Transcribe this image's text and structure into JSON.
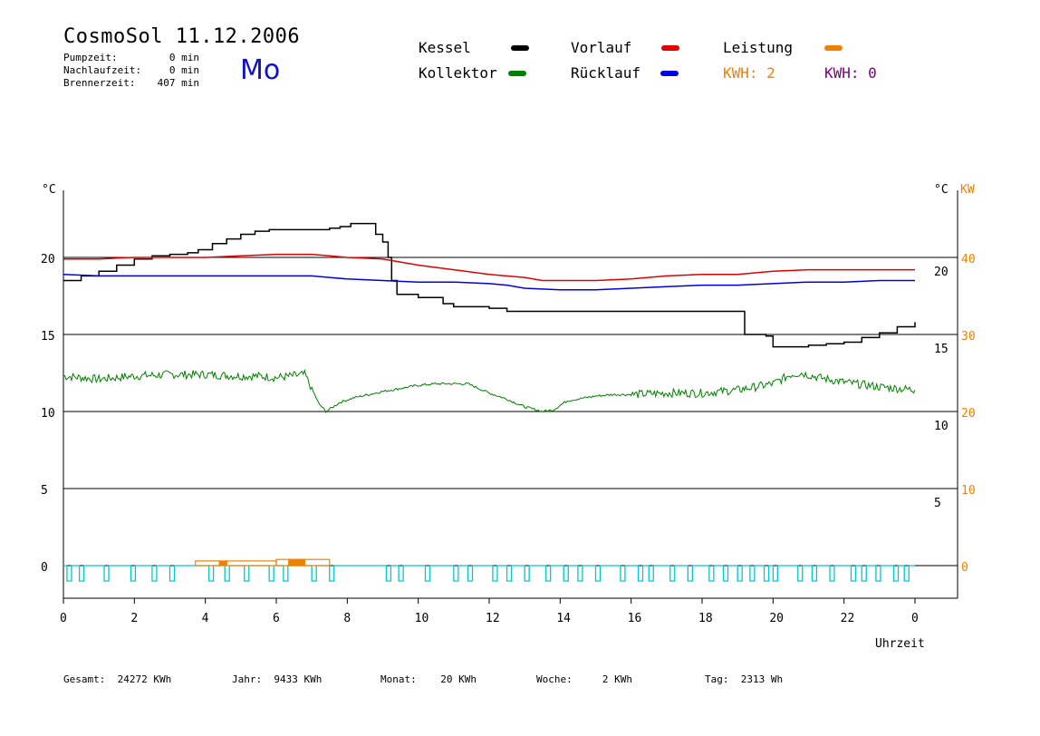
{
  "header": {
    "title": "CosmoSol 11.12.2006",
    "day": "Mo",
    "stats": [
      {
        "label": "Pumpzeit:",
        "value": "0 min"
      },
      {
        "label": "Nachlaufzeit:",
        "value": "0 min"
      },
      {
        "label": "Brennerzeit:",
        "value": "407 min"
      }
    ]
  },
  "legend": {
    "kessel": {
      "label": "Kessel",
      "color": "#000000"
    },
    "vorlauf": {
      "label": "Vorlauf",
      "color": "#e00000"
    },
    "leistung": {
      "label": "Leistung",
      "color": "#f08000"
    },
    "kollektor": {
      "label": "Kollektor",
      "color": "#008000"
    },
    "ruecklauf": {
      "label": "Rücklauf",
      "color": "#0000e0"
    },
    "kwh_a": {
      "label": "KWH: 2",
      "color": "#f08000"
    },
    "kwh_b": {
      "label": "KWH: 0",
      "color": "#800080"
    }
  },
  "footer": {
    "gesamt": "Gesamt:  24272 KWh",
    "jahr": "Jahr:  9433 KWh",
    "monat": "Monat:    20 KWh",
    "woche": "Woche:     2 KWh",
    "tag": "Tag:  2313 Wh"
  },
  "chart_data": {
    "type": "line",
    "xlabel": "Uhrzeit",
    "xlim": [
      0,
      24
    ],
    "ylim": [
      -1.5,
      25
    ],
    "left_unit": "°C",
    "right_unit": "°C",
    "right_power_unit": "KW",
    "x_ticks": [
      "0",
      "2",
      "4",
      "6",
      "8",
      "10",
      "12",
      "14",
      "16",
      "18",
      "20",
      "22",
      "0"
    ],
    "left_ticks": [
      {
        "v": 0,
        "t": "0"
      },
      {
        "v": 5,
        "t": "5"
      },
      {
        "v": 10,
        "t": "10"
      },
      {
        "v": 15,
        "t": "15"
      },
      {
        "v": 20,
        "t": "20"
      }
    ],
    "right_temp_ticks": [
      {
        "v": 5,
        "t": "5"
      },
      {
        "v": 10,
        "t": "10"
      },
      {
        "v": 15,
        "t": "15"
      },
      {
        "v": 20,
        "t": "20"
      }
    ],
    "right_power_ticks": [
      {
        "v": 0,
        "t": "0"
      },
      {
        "v": 5,
        "t": "10"
      },
      {
        "v": 10,
        "t": "20"
      },
      {
        "v": 15,
        "t": "30"
      },
      {
        "v": 20,
        "t": "40"
      }
    ],
    "grid_lines": [
      0,
      5,
      10,
      15,
      20
    ],
    "series": [
      {
        "name": "Kessel",
        "color": "#000000",
        "step": true,
        "x": [
          0,
          0.5,
          1,
          1.5,
          2,
          2.5,
          3,
          3.5,
          3.8,
          4.2,
          4.6,
          5,
          5.4,
          5.8,
          6.5,
          7.2,
          7.5,
          7.8,
          8.1,
          8.6,
          8.8,
          9.0,
          9.15,
          9.25,
          9.4,
          10,
          10.7,
          11,
          12,
          12.5,
          13,
          14,
          15,
          16,
          17,
          18,
          19,
          19.2,
          19.8,
          20,
          20.5,
          21,
          21.5,
          22,
          22.5,
          23,
          23.5,
          24
        ],
        "y": [
          18.5,
          18.8,
          19.1,
          19.5,
          19.9,
          20.1,
          20.2,
          20.3,
          20.5,
          20.9,
          21.2,
          21.5,
          21.7,
          21.8,
          21.8,
          21.8,
          21.9,
          22.0,
          22.2,
          22.2,
          21.5,
          21.0,
          20.0,
          18.5,
          17.6,
          17.4,
          17.0,
          16.8,
          16.7,
          16.5,
          16.5,
          16.5,
          16.5,
          16.5,
          16.5,
          16.5,
          16.5,
          15.0,
          14.9,
          14.2,
          14.2,
          14.3,
          14.4,
          14.5,
          14.8,
          15.1,
          15.5,
          15.8
        ]
      },
      {
        "name": "Vorlauf",
        "color": "#e00000",
        "x": [
          0,
          1,
          2,
          3,
          4,
          5,
          6,
          6.5,
          7,
          7.5,
          8,
          9,
          9.5,
          10,
          11,
          12,
          13,
          13.5,
          14,
          15,
          16,
          17,
          18,
          19,
          20,
          21,
          22,
          23,
          24
        ],
        "y": [
          19.9,
          19.9,
          20.0,
          20.0,
          20.0,
          20.1,
          20.2,
          20.2,
          20.2,
          20.1,
          20.0,
          19.9,
          19.7,
          19.5,
          19.2,
          18.9,
          18.7,
          18.5,
          18.5,
          18.5,
          18.6,
          18.8,
          18.9,
          18.9,
          19.1,
          19.2,
          19.2,
          19.2,
          19.2
        ]
      },
      {
        "name": "Rücklauf",
        "color": "#0000e0",
        "x": [
          0,
          1,
          2,
          3,
          4,
          5,
          6,
          7,
          7.5,
          8,
          9,
          10,
          11,
          12,
          12.5,
          13,
          14,
          15,
          16,
          17,
          18,
          19,
          20,
          21,
          22,
          23,
          24
        ],
        "y": [
          18.9,
          18.8,
          18.8,
          18.8,
          18.8,
          18.8,
          18.8,
          18.8,
          18.7,
          18.6,
          18.5,
          18.4,
          18.4,
          18.3,
          18.2,
          18.0,
          17.9,
          17.9,
          18.0,
          18.1,
          18.2,
          18.2,
          18.3,
          18.4,
          18.4,
          18.5,
          18.5
        ]
      },
      {
        "name": "Kollektor",
        "color": "#008000",
        "noisy": true,
        "x": [
          0,
          0.5,
          1,
          2,
          3,
          4,
          5,
          5.5,
          6,
          6.8,
          7.0,
          7.2,
          7.4,
          7.6,
          7.8,
          8.2,
          8.6,
          9,
          9.5,
          10,
          10.5,
          11,
          11.4,
          12,
          12.5,
          13,
          13.5,
          13.8,
          14.2,
          15,
          15.5,
          16,
          17,
          18,
          19,
          20,
          20.5,
          20.8,
          21.3,
          22,
          23,
          24
        ],
        "y": [
          12.3,
          12.2,
          12.1,
          12.3,
          12.4,
          12.4,
          12.3,
          12.3,
          12.2,
          12.4,
          11.5,
          10.5,
          10.0,
          10.3,
          10.6,
          10.9,
          11.1,
          11.3,
          11.5,
          11.7,
          11.8,
          11.8,
          11.8,
          11.2,
          10.8,
          10.3,
          10.0,
          10.1,
          10.7,
          11.0,
          11.1,
          11.1,
          11.2,
          11.2,
          11.4,
          11.8,
          12.4,
          12.5,
          12.2,
          11.9,
          11.6,
          11.4
        ]
      }
    ],
    "power_blocks": [
      {
        "x0": 3.72,
        "x1": 4.4,
        "y": 0.3
      },
      {
        "x0": 4.4,
        "x1": 4.6,
        "y": 0.3,
        "filled": true
      },
      {
        "x0": 4.6,
        "x1": 6.0,
        "y": 0.3
      },
      {
        "x0": 6.0,
        "x1": 7.5,
        "y": 0.4
      },
      {
        "x0": 6.35,
        "x1": 6.8,
        "y": 0.4,
        "filled": true
      }
    ],
    "pump_pulses": [
      0.1,
      0.45,
      1.15,
      1.9,
      2.5,
      3.0,
      4.1,
      4.55,
      5.1,
      5.8,
      6.2,
      7.0,
      7.5,
      9.1,
      9.45,
      10.2,
      11.0,
      11.4,
      12.1,
      12.5,
      13.0,
      13.6,
      14.1,
      14.5,
      15.0,
      15.7,
      16.2,
      16.5,
      17.1,
      17.6,
      18.2,
      18.6,
      19.0,
      19.35,
      19.75,
      20.0,
      20.7,
      21.1,
      21.6,
      22.2,
      22.5,
      22.9,
      23.4,
      23.7
    ]
  }
}
